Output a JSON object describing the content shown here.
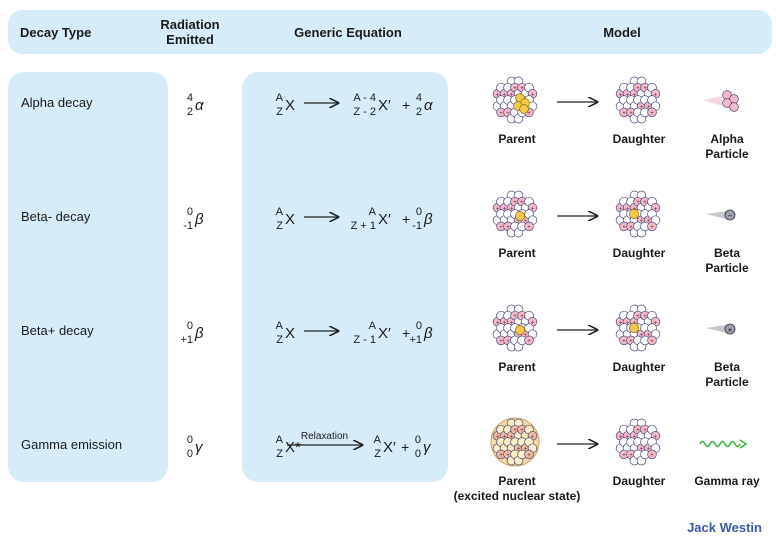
{
  "header": {
    "decay_type": "Decay Type",
    "radiation_line1": "Radiation",
    "radiation_line2": "Emitted",
    "equation": "Generic Equation",
    "model": "Model"
  },
  "rows": [
    {
      "decay": "Alpha decay",
      "rad_top": "4",
      "rad_bot": "2",
      "rad_sym": "α",
      "eq_left_A": "A",
      "eq_left_Z": "Z",
      "eq_left_X": "X",
      "eq_mid_top": "A - 4",
      "eq_mid_bot": "Z - 2",
      "eq_mid_X": "X′",
      "eq_plus": "+",
      "eq_r_top": "4",
      "eq_r_bot": "2",
      "eq_r_sym": "α",
      "parent": "Parent",
      "daughter": "Daughter",
      "particle1": "Alpha",
      "particle2": "Particle"
    },
    {
      "decay": "Beta- decay",
      "rad_top": "0",
      "rad_bot": "-1",
      "rad_sym": "β",
      "eq_left_A": "A",
      "eq_left_Z": "Z",
      "eq_left_X": "X",
      "eq_mid_top": "A",
      "eq_mid_bot": "Z + 1",
      "eq_mid_X": "X′",
      "eq_plus": "+",
      "eq_r_top": "0",
      "eq_r_bot": "-1",
      "eq_r_sym": "β",
      "parent": "Parent",
      "daughter": "Daughter",
      "particle1": "Beta",
      "particle2": "Particle"
    },
    {
      "decay": "Beta+ decay",
      "rad_top": "0",
      "rad_bot": "+1",
      "rad_sym": "β",
      "eq_left_A": "A",
      "eq_left_Z": "Z",
      "eq_left_X": "X",
      "eq_mid_top": "A",
      "eq_mid_bot": "Z - 1",
      "eq_mid_X": "X′",
      "eq_plus": "+",
      "eq_r_top": "0",
      "eq_r_bot": "+1",
      "eq_r_sym": "β",
      "parent": "Parent",
      "daughter": "Daughter",
      "particle1": "Beta",
      "particle2": "Particle"
    },
    {
      "decay": "Gamma emission",
      "rad_top": "0",
      "rad_bot": "0",
      "rad_sym": "γ",
      "eq_left_A": "A",
      "eq_left_Z": "Z",
      "eq_left_X": "X*",
      "eq_arrow_label": "Relaxation",
      "eq_mid_top": "A",
      "eq_mid_bot": "Z",
      "eq_mid_X": "X′",
      "eq_plus": "+",
      "eq_r_top": "0",
      "eq_r_bot": "0",
      "eq_r_sym": "γ",
      "parent": "Parent",
      "parent2": "(excited nuclear state)",
      "daughter": "Daughter",
      "particle1": "Gamma ray",
      "particle2": ""
    }
  ],
  "brand": "Jack Westin",
  "colors": {
    "panel": "#d6ecf9",
    "proton": "#f4b9c9",
    "neutron": "#ffffff",
    "alpha_glow": "#f2c94c",
    "gamma": "#3ab03a",
    "excited": "#f5d9a6"
  }
}
